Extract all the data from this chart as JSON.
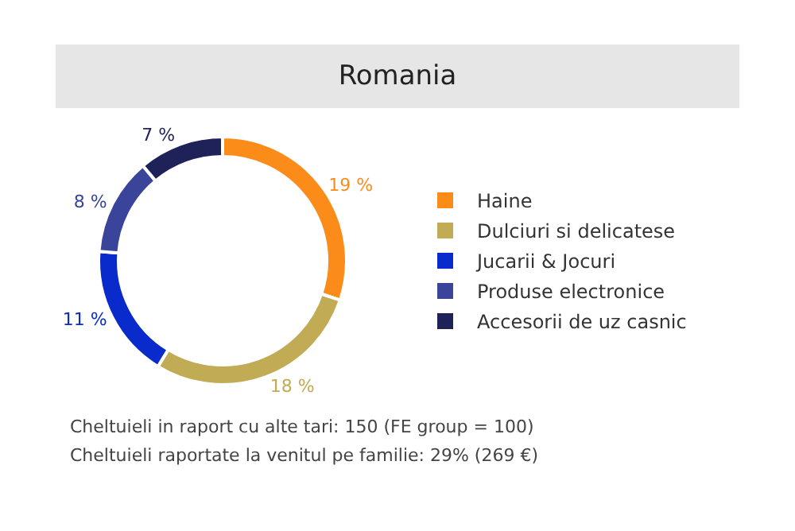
{
  "chart_data": {
    "type": "donut",
    "title": "Romania",
    "categories": [
      "Haine",
      "Dulciuri si delicatese",
      "Jucarii & Jocuri",
      "Produse electronice",
      "Accesorii de uz casnic"
    ],
    "values": [
      19,
      18,
      11,
      8,
      7
    ],
    "colors": [
      "#fb8c1a",
      "#c2ab55",
      "#0a2bcc",
      "#39449a",
      "#1f2258"
    ],
    "value_labels": [
      "19 %",
      "18 %",
      "11 %",
      "8 %",
      "7 %"
    ],
    "legend": "right",
    "annotations": [
      "Cheltuieli in raport cu alte tari: 150 (FE group = 100)",
      "Cheltuieli raportate la venitul pe familie: 29% (269 €)"
    ]
  }
}
